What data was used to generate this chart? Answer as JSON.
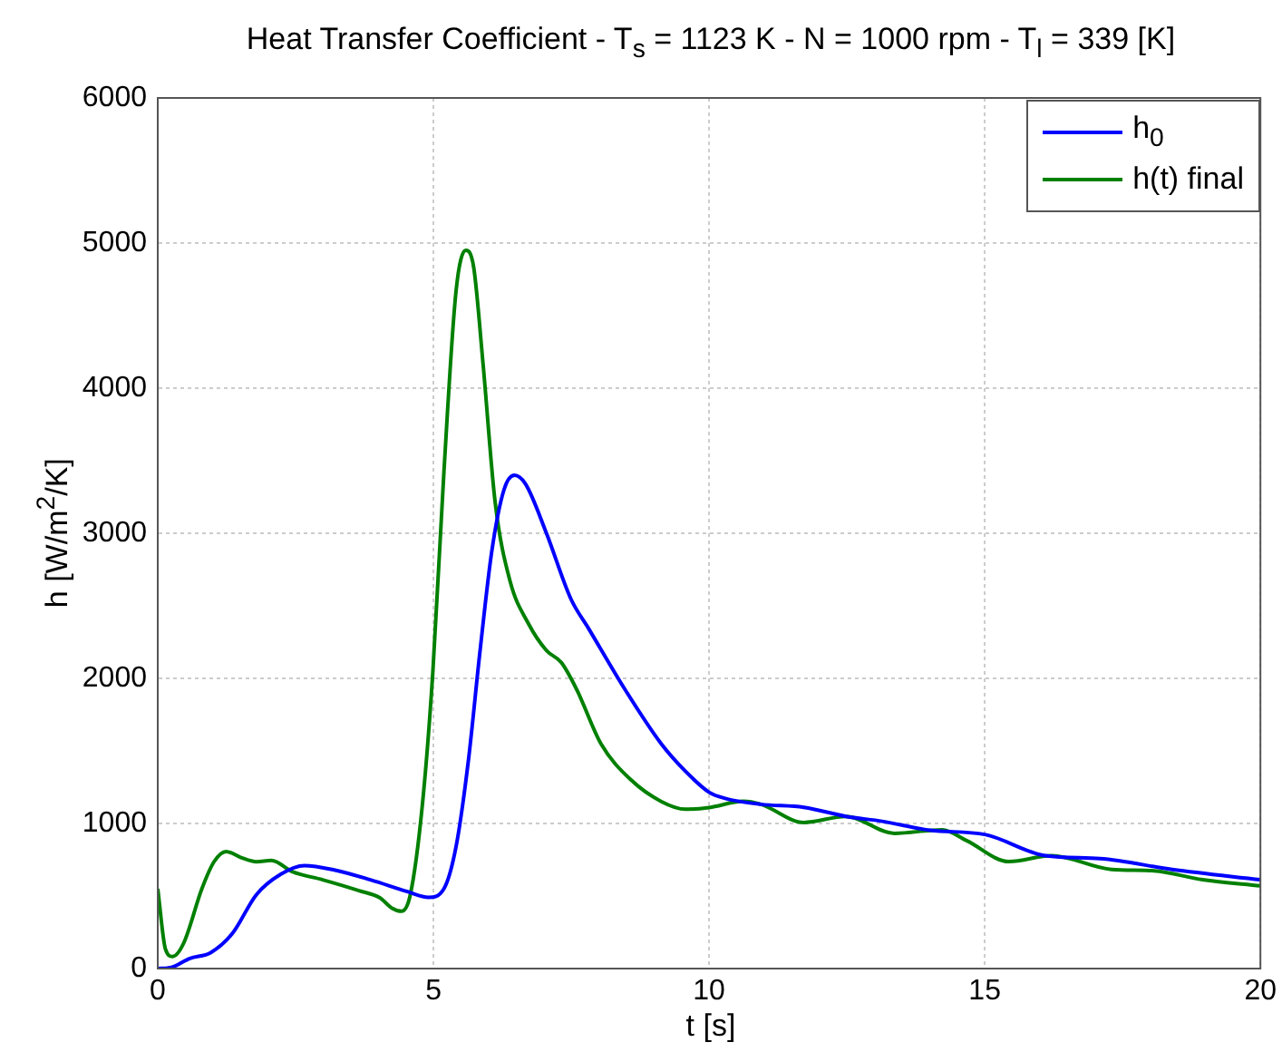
{
  "chart_data": {
    "type": "line",
    "title": "Heat Transfer Coefficient - T$_{s}$ = 1123 K - N = 1000 rpm - T$_{l}$ = 339 [K]",
    "xlabel": "t [s]",
    "ylabel": "h [W/m$^{2}$/K]",
    "xlim": [
      0,
      20
    ],
    "xticks": [
      0,
      5,
      10,
      15,
      20
    ],
    "ylim": [
      0,
      6000
    ],
    "yticks": [
      0,
      1000,
      2000,
      3000,
      4000,
      5000,
      6000
    ],
    "grid": true,
    "legend": "top right",
    "line_style": "solid",
    "marker": "none",
    "series": [
      {
        "name": "h$_{0}$",
        "color": "#0000ff",
        "x": [
          0,
          0.25,
          0.58,
          0.96,
          1.35,
          1.79,
          2.23,
          2.66,
          3.2,
          3.87,
          4.53,
          4.91,
          5.19,
          5.41,
          5.63,
          5.84,
          6.06,
          6.28,
          6.47,
          6.67,
          7.05,
          7.49,
          7.82,
          8.48,
          9.13,
          9.57,
          10,
          10.29,
          10.94,
          11.72,
          12.48,
          13.14,
          14.01,
          15,
          16.1,
          17.09,
          18.4,
          20
        ],
        "values": [
          0,
          8,
          70,
          110,
          240,
          510,
          650,
          710,
          680,
          610,
          530,
          490,
          550,
          840,
          1420,
          2170,
          2880,
          3300,
          3400,
          3340,
          3000,
          2550,
          2340,
          1920,
          1550,
          1360,
          1215,
          1173,
          1132,
          1111,
          1049,
          1015,
          953,
          924,
          778,
          758,
          683,
          612
        ]
      },
      {
        "name": "h(t) final",
        "color": "#008000",
        "x": [
          0,
          0.14,
          0.27,
          0.47,
          0.8,
          1.02,
          1.24,
          1.51,
          1.79,
          2.06,
          2.45,
          2.99,
          3.65,
          4.03,
          4.25,
          4.42,
          4.58,
          4.8,
          4.99,
          5.19,
          5.41,
          5.59,
          5.73,
          5.9,
          6.12,
          6.39,
          6.72,
          7.05,
          7.32,
          7.6,
          8.04,
          8.59,
          9.13,
          9.57,
          10,
          10.62,
          10.94,
          11.72,
          12.48,
          13.36,
          14.23,
          14.67,
          15.44,
          16.21,
          17.3,
          18.07,
          18.95,
          20
        ],
        "values": [
          550,
          133,
          83,
          175,
          550,
          736,
          807,
          765,
          736,
          745,
          666,
          612,
          537,
          487,
          416,
          395,
          508,
          1130,
          2047,
          3420,
          4668,
          4950,
          4834,
          4168,
          3212,
          2670,
          2380,
          2192,
          2109,
          1922,
          1548,
          1298,
          1152,
          1098,
          1110,
          1153,
          1132,
          1007,
          1049,
          932,
          957,
          882,
          737,
          778,
          683,
          674,
          612,
          570
        ]
      }
    ]
  }
}
